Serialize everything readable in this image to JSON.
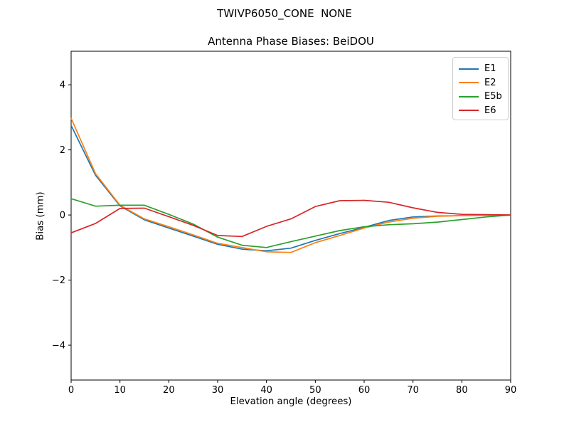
{
  "figure": {
    "suptitle": "TWIVP6050_CONE  NONE"
  },
  "chart_data": {
    "type": "line",
    "title": "Antenna Phase Biases: BeiDOU",
    "xlabel": "Elevation angle (degrees)",
    "ylabel": "Bias (mm)",
    "xlim": [
      0,
      90
    ],
    "ylim": [
      -5.07,
      5.03
    ],
    "xticks": [
      0,
      10,
      20,
      30,
      40,
      50,
      60,
      70,
      80,
      90
    ],
    "yticks": [
      -4,
      -2,
      0,
      2,
      4
    ],
    "grid": false,
    "legend_position": "upper right",
    "x": [
      0,
      5,
      10,
      15,
      20,
      25,
      30,
      35,
      40,
      45,
      50,
      55,
      60,
      65,
      70,
      75,
      80,
      85,
      90
    ],
    "series": [
      {
        "name": "E1",
        "color": "#1f77b4",
        "values": [
          2.75,
          1.22,
          0.28,
          -0.15,
          -0.4,
          -0.65,
          -0.9,
          -1.05,
          -1.1,
          -1.02,
          -0.78,
          -0.57,
          -0.38,
          -0.17,
          -0.06,
          -0.03,
          -0.02,
          -0.01,
          0.0
        ]
      },
      {
        "name": "E2",
        "color": "#ff7f0e",
        "values": [
          2.97,
          1.27,
          0.3,
          -0.12,
          -0.36,
          -0.61,
          -0.87,
          -1.0,
          -1.13,
          -1.15,
          -0.85,
          -0.63,
          -0.4,
          -0.22,
          -0.1,
          -0.04,
          -0.02,
          -0.01,
          0.0
        ]
      },
      {
        "name": "E5b",
        "color": "#2ca02c",
        "values": [
          0.5,
          0.27,
          0.3,
          0.3,
          0.02,
          -0.28,
          -0.68,
          -0.93,
          -1.0,
          -0.82,
          -0.65,
          -0.48,
          -0.36,
          -0.3,
          -0.27,
          -0.22,
          -0.14,
          -0.06,
          0.0
        ]
      },
      {
        "name": "E6",
        "color": "#d62728",
        "values": [
          -0.55,
          -0.26,
          0.2,
          0.21,
          -0.05,
          -0.32,
          -0.63,
          -0.66,
          -0.35,
          -0.12,
          0.26,
          0.44,
          0.45,
          0.39,
          0.22,
          0.08,
          0.02,
          0.01,
          0.0
        ]
      }
    ]
  }
}
